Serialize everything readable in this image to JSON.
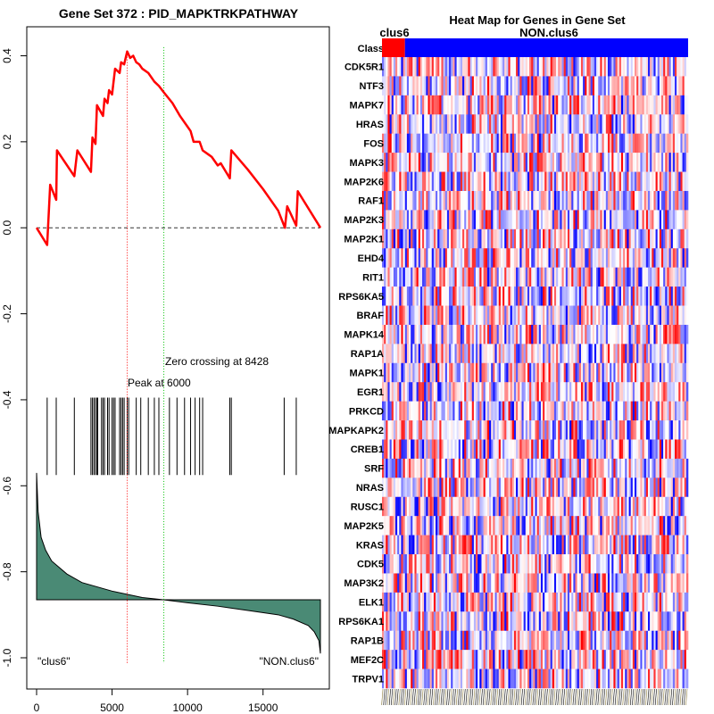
{
  "chart_data": [
    {
      "type": "line",
      "title": "Gene Set  372 : PID_MAPKTRKPATHWAY",
      "xlim": [
        0,
        18800
      ],
      "ylim": [
        -1.0,
        0.44
      ],
      "x_ticks": [
        0,
        5000,
        10000,
        15000
      ],
      "x_tick_labels": [
        "0",
        "5000",
        "10000",
        "15000"
      ],
      "y_ticks": [
        0.4,
        0.2,
        0.0,
        -0.2,
        -0.4,
        -0.6,
        -0.8,
        -1.0
      ],
      "y_tick_labels": [
        "0.4",
        "0.2",
        "0.0",
        "-0.2",
        "-0.4",
        "-0.6",
        "-0.8",
        "-1.0"
      ],
      "baseline": 0.0,
      "colors": {
        "enrichment": "#ff0000",
        "peak": "#ff0000",
        "zero": "#00c000",
        "metric": "#4a8a75",
        "baseline": "#333333"
      },
      "enrichment_score": {
        "x": [
          0,
          700,
          900,
          1300,
          1350,
          2500,
          2700,
          3600,
          3700,
          3900,
          4000,
          4400,
          4500,
          4700,
          4800,
          5000,
          5200,
          5500,
          5600,
          5800,
          6000,
          6200,
          6400,
          6600,
          6800,
          7000,
          7400,
          7800,
          8100,
          8428,
          9000,
          9500,
          10000,
          10200,
          10400,
          10800,
          11000,
          11400,
          11600,
          12000,
          12200,
          12800,
          12900,
          14000,
          15000,
          16000,
          16450,
          16600,
          17200,
          17300,
          18800
        ],
        "y": [
          0.0,
          -0.04,
          0.1,
          0.065,
          0.18,
          0.12,
          0.18,
          0.13,
          0.21,
          0.195,
          0.285,
          0.26,
          0.3,
          0.29,
          0.32,
          0.31,
          0.37,
          0.36,
          0.385,
          0.38,
          0.41,
          0.395,
          0.4,
          0.385,
          0.38,
          0.37,
          0.36,
          0.34,
          0.33,
          0.315,
          0.29,
          0.26,
          0.235,
          0.225,
          0.2,
          0.2,
          0.18,
          0.17,
          0.165,
          0.145,
          0.15,
          0.115,
          0.18,
          0.135,
          0.09,
          0.04,
          0.0,
          0.05,
          0.005,
          0.085,
          0.0
        ]
      },
      "hits": [
        700,
        1300,
        2500,
        3600,
        3700,
        3800,
        3900,
        4000,
        4050,
        4300,
        4400,
        4500,
        4700,
        4800,
        5000,
        5100,
        5200,
        5500,
        5600,
        5700,
        5800,
        6000,
        6100,
        6600,
        6900,
        7400,
        7800,
        8100,
        8800,
        9300,
        9800,
        10200,
        10500,
        10800,
        11000,
        12800,
        12900,
        16400,
        17200
      ],
      "ranked_metric": {
        "x": [
          0,
          100,
          300,
          600,
          1000,
          2000,
          3000,
          5000,
          7000,
          8400,
          10000,
          12000,
          14000,
          16000,
          17000,
          18000,
          18400,
          18700,
          18800
        ],
        "y": [
          -0.57,
          -0.66,
          -0.72,
          -0.75,
          -0.775,
          -0.805,
          -0.825,
          -0.845,
          -0.86,
          -0.865,
          -0.872,
          -0.88,
          -0.89,
          -0.9,
          -0.91,
          -0.925,
          -0.94,
          -0.96,
          -0.99
        ]
      },
      "metric_baseline": -0.865,
      "peak_at": 6000,
      "zero_crossing_at": 8428,
      "annotations": {
        "peak_label": "Peak at 6000",
        "zero_label": "Zero crossing at 8428",
        "left_label": "\"clus6\"",
        "right_label": "\"NON.clus6\""
      }
    },
    {
      "type": "heatmap",
      "title": "Heat Map for Genes in Gene Set",
      "class_row_label": "Class",
      "class_groups": [
        {
          "name": "clus6",
          "color": "#ff0000",
          "fraction": 0.075
        },
        {
          "name": "NON.clus6",
          "color": "#0000ff",
          "fraction": 0.925
        }
      ],
      "color_scale": {
        "low": "#0000ff",
        "mid": "#ffffff",
        "high": "#ff0000"
      },
      "n_samples": 160,
      "genes": [
        "CDK5R1",
        "NTF3",
        "MAPK7",
        "HRAS",
        "FOS",
        "MAPK3",
        "MAP2K6",
        "RAF1",
        "MAP2K3",
        "MAP2K1",
        "EHD4",
        "RIT1",
        "RPS6KA5",
        "BRAF",
        "MAPK14",
        "RAP1A",
        "MAPK1",
        "EGR1",
        "PRKCD",
        "MAPKAPK2",
        "CREB1",
        "SRF",
        "NRAS",
        "RUSC1",
        "MAP2K5",
        "KRAS",
        "CDK5",
        "MAP3K2",
        "ELK1",
        "RPS6KA1",
        "RAP1B",
        "MEF2C",
        "TRPV1"
      ]
    }
  ]
}
